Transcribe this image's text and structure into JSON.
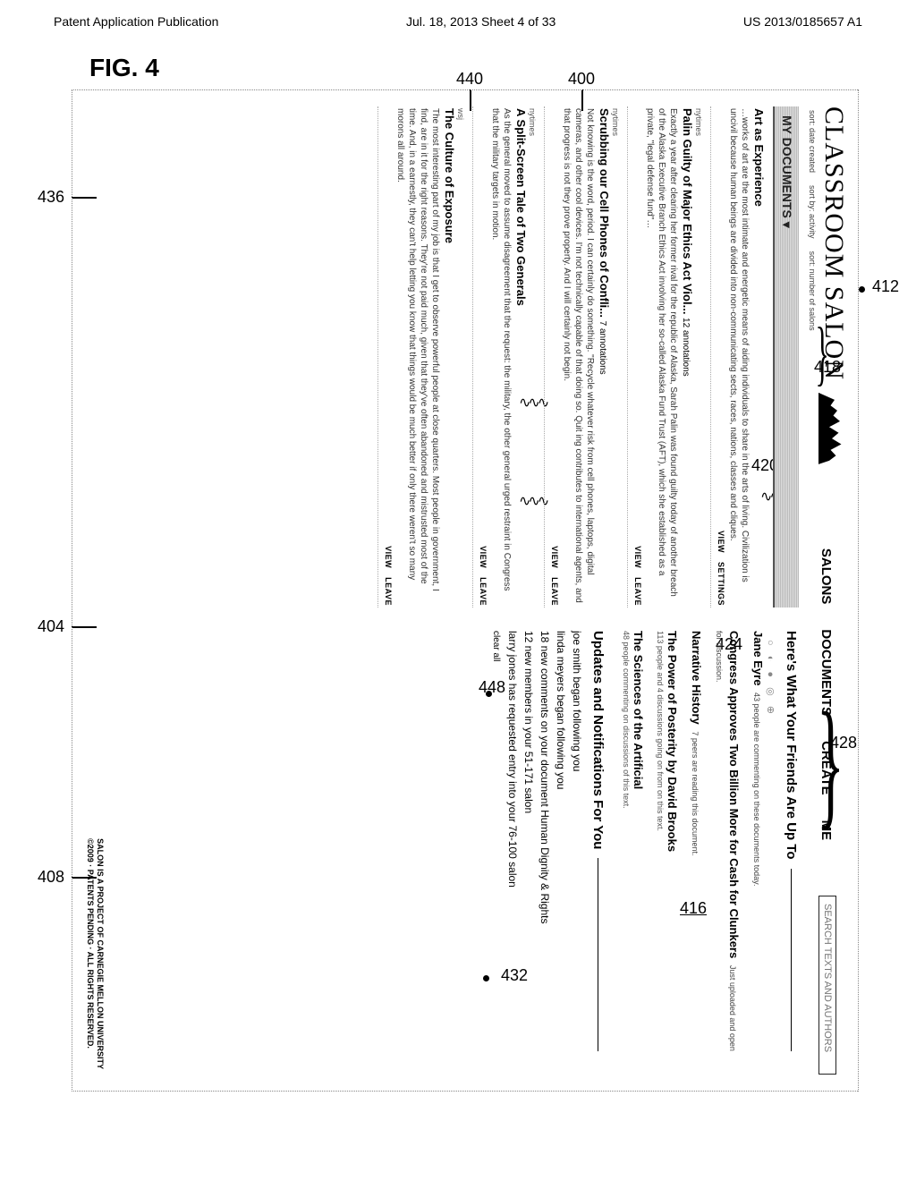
{
  "page_header": {
    "left": "Patent Application Publication",
    "center": "Jul. 18, 2013  Sheet 4 of 33",
    "right": "US 2013/0185657 A1"
  },
  "figure_label": "FIG. 4",
  "callouts": {
    "c440": "440",
    "c400": "400",
    "c436": "436",
    "c404": "404",
    "c408": "408",
    "c412": "412",
    "c418": "418",
    "c420": "420",
    "c424": "424",
    "c428": "428",
    "c448": "448",
    "c416": "416",
    "c432": "432"
  },
  "logo_text": "CLASSROOM SALON",
  "nav": {
    "salons": "SALONS",
    "documents": "DOCUMENTS",
    "create": "CREATE",
    "me": "ME"
  },
  "search_placeholder": "SEARCH TEXTS AND AUTHORS",
  "sub_links": {
    "a": "sort: date created",
    "b": "sort by: activity",
    "c": "sort: number of salons"
  },
  "my_docs_header": "MY DOCUMENTS ▾",
  "documents": [
    {
      "pre": "",
      "title": "Art as Experience",
      "cont": "",
      "body": "…works of art are the most intimate and energetic means of aiding individuals to share in the arts of living. Civilization is uncivil because human beings are divided into non-communicating sects, races, nations, classes and cliques.",
      "actions": [
        "VIEW",
        "SETTINGS"
      ]
    },
    {
      "pre": "nytimes",
      "title": "Palin Guilty of Major Ethics Act Viol...",
      "cont": "12 annotations",
      "body": "Exactly a year after clearing her former rival for the republic of Alaska, Sarah Palin was found guilty today of another breach of the Alaska Executive Branch Ethics Act involving her so-called Alaska Fund Trust (AFT), which she established as a private, \"legal defense fund\"…",
      "actions": [
        "VIEW",
        "LEAVE"
      ]
    },
    {
      "pre": "nytimes",
      "title": "Scrubbing our Cell Phones of Confli...",
      "cont": "7 annotations",
      "body": "Not knowing is the word, period. I can certainly do something. \"Recycle whatever risk from cell phones, laptops, digital cameras, and other cool devices. I'm not technically capable of that doing so. Quit ing contributes to international agents, and that progress is not they prove property. And I will certainly not begin.",
      "actions": [
        "VIEW",
        "LEAVE"
      ]
    },
    {
      "pre": "nytimes",
      "title": "A Split-Screen Tale of Two Generals",
      "cont": "",
      "body": "As the general moved to assume disagreement that the request: the military, the other general urged restraint in Congress that the military targets in motion.",
      "actions": [
        "VIEW",
        "LEAVE"
      ]
    },
    {
      "pre": "wsj",
      "title": "The Culture of Exposure",
      "cont": "",
      "body": "The most interesting part of my job is that I get to observe powerful people at close quarters. Most people in government, I find, are in it for the right reasons. They're not paid much, given that they've often abandoned and mistrusted most of the time. And, in a earnestly, they can't help letting you know that things would be much better if only there weren't so many morons all around.",
      "actions": [
        "VIEW",
        "LEAVE"
      ]
    }
  ],
  "friends_header": "Here's What Your Friends Are Up To",
  "friends": [
    {
      "title": "Jane Eyre",
      "sub": "43 people are commenting on these documents today.",
      "meta": ""
    },
    {
      "title": "Congress Approves Two Billion More for Cash for Clunkers",
      "sub": "Just uploaded and open for discussion.",
      "meta": ""
    },
    {
      "title": "Narrative History",
      "sub": "7 peers are reading this document.",
      "meta": ""
    },
    {
      "title": "The Power of Posterity by David Brooks",
      "sub": "",
      "meta": "113 people and 4 discussions going on from on this text."
    },
    {
      "title": "The Sciences of the Artificial",
      "sub": "",
      "meta": "48 people commenting on discussions of this text."
    }
  ],
  "updates_header": "Updates and Notifications For You",
  "notifications": [
    "joe smith began following you",
    "linda meyers began following you",
    "18 new comments on your document Human Dignity & Rights",
    "12 new members in your 51-171 salon",
    "larry jones has requested entry into your 76-100 salon"
  ],
  "clear_all": "clear all",
  "footer": {
    "line1": "SALON IS A PROJECT OF CARNEGIE MELLON UNIVERSITY",
    "line2": "©2009 · PATENTS PENDING · ALL RIGHTS RESERVED."
  },
  "underline_416": "416"
}
